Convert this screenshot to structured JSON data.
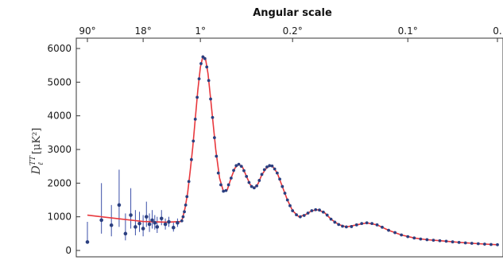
{
  "chart_data": {
    "type": "scatter",
    "title": "Angular scale",
    "ylabel": {
      "main": "D",
      "subscript": "ℓ",
      "superscript": "TT",
      "unit": "[μK²]"
    },
    "ylim": [
      0,
      6000
    ],
    "yticks": [
      0,
      1000,
      2000,
      3000,
      4000,
      5000,
      6000
    ],
    "top_axis_ticks": [
      {
        "label": "90°",
        "ell": 2
      },
      {
        "label": "18°",
        "ell": 10
      },
      {
        "label": "1°",
        "ell": 180
      },
      {
        "label": "0.2°",
        "ell": 900
      },
      {
        "label": "0.1°",
        "ell": 1800
      },
      {
        "label": "0.",
        "ell": 2500
      }
    ],
    "x_scale": "log below ell=30, linear above",
    "grid": false,
    "colors": {
      "model": "#e8383d",
      "data_points": "#2b3f80",
      "error_bars": "#3b4fa8",
      "axes": "#333333"
    },
    "model_curve": [
      [
        2,
        1050
      ],
      [
        5,
        940
      ],
      [
        10,
        860
      ],
      [
        20,
        840
      ],
      [
        30,
        860
      ],
      [
        40,
        950
      ],
      [
        60,
        1250
      ],
      [
        80,
        1700
      ],
      [
        100,
        2350
      ],
      [
        120,
        3050
      ],
      [
        140,
        3900
      ],
      [
        160,
        4750
      ],
      [
        180,
        5450
      ],
      [
        200,
        5770
      ],
      [
        220,
        5700
      ],
      [
        240,
        5250
      ],
      [
        260,
        4500
      ],
      [
        280,
        3750
      ],
      [
        300,
        3000
      ],
      [
        330,
        2150
      ],
      [
        360,
        1750
      ],
      [
        390,
        1800
      ],
      [
        420,
        2150
      ],
      [
        450,
        2450
      ],
      [
        480,
        2560
      ],
      [
        510,
        2470
      ],
      [
        540,
        2200
      ],
      [
        570,
        1950
      ],
      [
        600,
        1850
      ],
      [
        630,
        1980
      ],
      [
        660,
        2250
      ],
      [
        700,
        2470
      ],
      [
        740,
        2520
      ],
      [
        780,
        2300
      ],
      [
        820,
        1900
      ],
      [
        860,
        1500
      ],
      [
        900,
        1180
      ],
      [
        950,
        1000
      ],
      [
        1000,
        1060
      ],
      [
        1050,
        1180
      ],
      [
        1100,
        1210
      ],
      [
        1150,
        1120
      ],
      [
        1200,
        930
      ],
      [
        1260,
        770
      ],
      [
        1320,
        700
      ],
      [
        1400,
        760
      ],
      [
        1480,
        820
      ],
      [
        1560,
        760
      ],
      [
        1650,
        600
      ],
      [
        1750,
        460
      ],
      [
        1850,
        370
      ],
      [
        1950,
        320
      ],
      [
        2050,
        290
      ],
      [
        2200,
        240
      ],
      [
        2350,
        200
      ],
      [
        2500,
        170
      ]
    ],
    "low_ell_points": [
      {
        "ell": 2,
        "y": 250,
        "err_lo": 220,
        "err_hi": 850
      },
      {
        "ell": 3,
        "y": 900,
        "err_lo": 500,
        "err_hi": 2000
      },
      {
        "ell": 4,
        "y": 750,
        "err_lo": 420,
        "err_hi": 1350
      },
      {
        "ell": 5,
        "y": 1350,
        "err_lo": 700,
        "err_hi": 2400
      },
      {
        "ell": 6,
        "y": 500,
        "err_lo": 300,
        "err_hi": 1100
      },
      {
        "ell": 7,
        "y": 1050,
        "err_lo": 650,
        "err_hi": 1850
      },
      {
        "ell": 8,
        "y": 700,
        "err_lo": 450,
        "err_hi": 1200
      },
      {
        "ell": 9,
        "y": 800,
        "err_lo": 550,
        "err_hi": 1150
      },
      {
        "ell": 10,
        "y": 650,
        "err_lo": 420,
        "err_hi": 1050
      },
      {
        "ell": 11,
        "y": 1000,
        "err_lo": 700,
        "err_hi": 1450
      },
      {
        "ell": 12,
        "y": 780,
        "err_lo": 550,
        "err_hi": 1100
      },
      {
        "ell": 13,
        "y": 900,
        "err_lo": 650,
        "err_hi": 1200
      },
      {
        "ell": 14,
        "y": 820,
        "err_lo": 620,
        "err_hi": 1050
      },
      {
        "ell": 15,
        "y": 700,
        "err_lo": 520,
        "err_hi": 1000
      },
      {
        "ell": 17,
        "y": 950,
        "err_lo": 750,
        "err_hi": 1200
      },
      {
        "ell": 19,
        "y": 780,
        "err_lo": 620,
        "err_hi": 950
      },
      {
        "ell": 21,
        "y": 850,
        "err_lo": 700,
        "err_hi": 1000
      },
      {
        "ell": 24,
        "y": 680,
        "err_lo": 560,
        "err_hi": 830
      },
      {
        "ell": 27,
        "y": 820,
        "err_lo": 700,
        "err_hi": 950
      }
    ],
    "high_ell_points": [
      [
        35,
        880
      ],
      [
        45,
        1000
      ],
      [
        55,
        1150
      ],
      [
        65,
        1350
      ],
      [
        75,
        1600
      ],
      [
        90,
        2050
      ],
      [
        110,
        2700
      ],
      [
        125,
        3250
      ],
      [
        140,
        3900
      ],
      [
        155,
        4550
      ],
      [
        170,
        5100
      ],
      [
        185,
        5550
      ],
      [
        200,
        5750
      ],
      [
        215,
        5700
      ],
      [
        230,
        5450
      ],
      [
        245,
        5050
      ],
      [
        260,
        4500
      ],
      [
        275,
        3950
      ],
      [
        290,
        3350
      ],
      [
        305,
        2800
      ],
      [
        320,
        2300
      ],
      [
        340,
        1950
      ],
      [
        360,
        1760
      ],
      [
        380,
        1780
      ],
      [
        400,
        1950
      ],
      [
        420,
        2150
      ],
      [
        440,
        2380
      ],
      [
        460,
        2520
      ],
      [
        480,
        2560
      ],
      [
        500,
        2500
      ],
      [
        520,
        2370
      ],
      [
        540,
        2200
      ],
      [
        560,
        2020
      ],
      [
        580,
        1900
      ],
      [
        600,
        1860
      ],
      [
        620,
        1920
      ],
      [
        640,
        2080
      ],
      [
        660,
        2260
      ],
      [
        680,
        2400
      ],
      [
        700,
        2480
      ],
      [
        720,
        2520
      ],
      [
        740,
        2510
      ],
      [
        760,
        2420
      ],
      [
        780,
        2300
      ],
      [
        800,
        2120
      ],
      [
        820,
        1900
      ],
      [
        840,
        1700
      ],
      [
        860,
        1500
      ],
      [
        880,
        1330
      ],
      [
        900,
        1180
      ],
      [
        930,
        1060
      ],
      [
        960,
        1000
      ],
      [
        990,
        1040
      ],
      [
        1020,
        1110
      ],
      [
        1050,
        1180
      ],
      [
        1080,
        1210
      ],
      [
        1110,
        1200
      ],
      [
        1140,
        1140
      ],
      [
        1170,
        1050
      ],
      [
        1200,
        930
      ],
      [
        1230,
        840
      ],
      [
        1260,
        770
      ],
      [
        1290,
        720
      ],
      [
        1320,
        700
      ],
      [
        1360,
        710
      ],
      [
        1400,
        760
      ],
      [
        1440,
        800
      ],
      [
        1480,
        820
      ],
      [
        1520,
        800
      ],
      [
        1560,
        760
      ],
      [
        1600,
        690
      ],
      [
        1650,
        600
      ],
      [
        1700,
        530
      ],
      [
        1750,
        460
      ],
      [
        1800,
        410
      ],
      [
        1850,
        370
      ],
      [
        1900,
        340
      ],
      [
        1950,
        320
      ],
      [
        2000,
        305
      ],
      [
        2050,
        290
      ],
      [
        2100,
        275
      ],
      [
        2150,
        255
      ],
      [
        2200,
        240
      ],
      [
        2250,
        225
      ],
      [
        2300,
        212
      ],
      [
        2350,
        200
      ],
      [
        2400,
        188
      ],
      [
        2450,
        178
      ],
      [
        2500,
        170
      ]
    ]
  }
}
